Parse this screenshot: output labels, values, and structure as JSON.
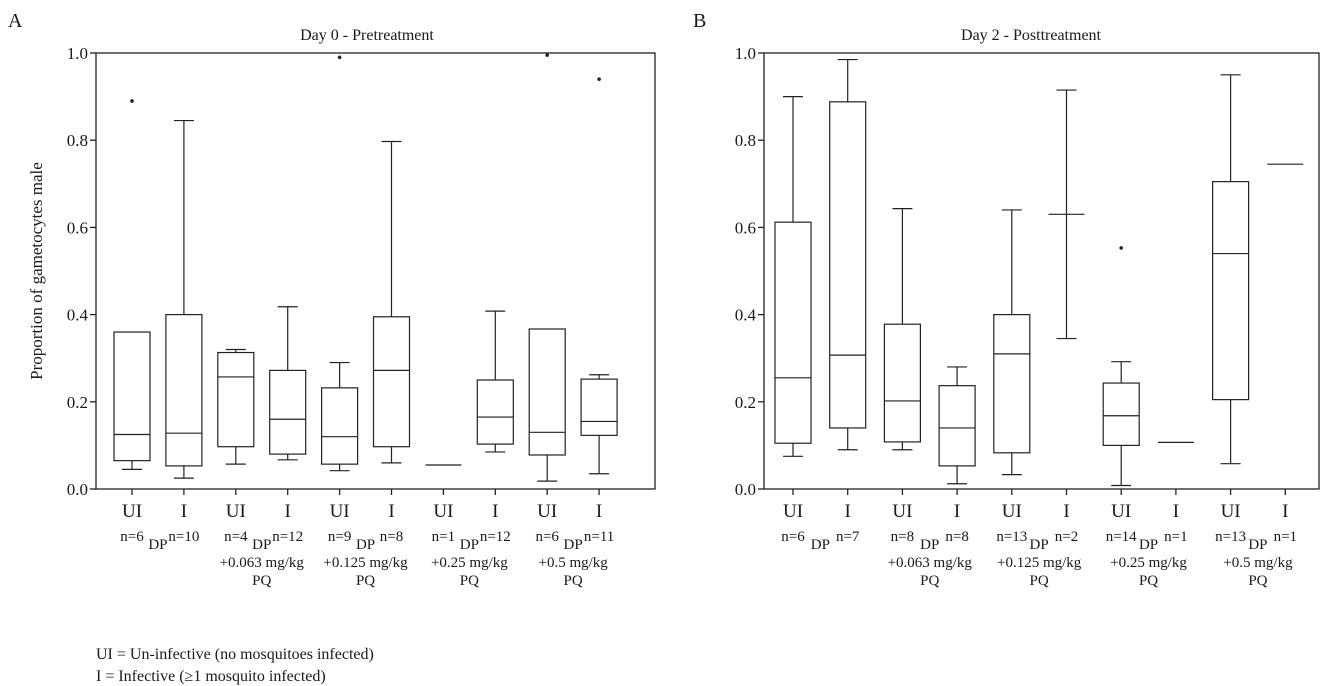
{
  "chart_data": [
    {
      "type": "box",
      "panel_label": "A",
      "title": "Day 0 - Pretreatment",
      "ylabel": "Proportion of gametocytes male",
      "ylim": [
        0,
        1.0
      ],
      "yticks": [
        "0.0",
        "0.2",
        "0.4",
        "0.6",
        "0.8",
        "1.0"
      ],
      "boxes": [
        {
          "category": "UI",
          "n": "n=6",
          "group": "DP",
          "min": 0.045,
          "q1": 0.065,
          "median": 0.125,
          "q3": 0.36,
          "max": 0.36,
          "outliers": [
            0.89
          ]
        },
        {
          "category": "I",
          "n": "n=10",
          "group": "DP",
          "min": 0.025,
          "q1": 0.053,
          "median": 0.128,
          "q3": 0.4,
          "max": 0.845,
          "outliers": []
        },
        {
          "category": "UI",
          "n": "n=4",
          "group": "DP +0.063 mg/kg PQ",
          "min": 0.057,
          "q1": 0.097,
          "median": 0.257,
          "q3": 0.313,
          "max": 0.32,
          "outliers": []
        },
        {
          "category": "I",
          "n": "n=12",
          "group": "DP +0.063 mg/kg PQ",
          "min": 0.067,
          "q1": 0.08,
          "median": 0.16,
          "q3": 0.272,
          "max": 0.418,
          "outliers": []
        },
        {
          "category": "UI",
          "n": "n=9",
          "group": "DP +0.125 mg/kg PQ",
          "min": 0.042,
          "q1": 0.057,
          "median": 0.12,
          "q3": 0.232,
          "max": 0.29,
          "outliers": [
            0.99
          ]
        },
        {
          "category": "I",
          "n": "n=8",
          "group": "DP +0.125 mg/kg PQ",
          "min": 0.06,
          "q1": 0.097,
          "median": 0.272,
          "q3": 0.395,
          "max": 0.797,
          "outliers": []
        },
        {
          "category": "UI",
          "n": "n=1",
          "group": "DP +0.25 mg/kg PQ",
          "min": 0.055,
          "q1": 0.055,
          "median": 0.055,
          "q3": 0.055,
          "max": 0.055,
          "outliers": []
        },
        {
          "category": "I",
          "n": "n=12",
          "group": "DP +0.25 mg/kg PQ",
          "min": 0.085,
          "q1": 0.103,
          "median": 0.165,
          "q3": 0.25,
          "max": 0.408,
          "outliers": []
        },
        {
          "category": "UI",
          "n": "n=6",
          "group": "DP +0.5 mg/kg PQ",
          "min": 0.018,
          "q1": 0.078,
          "median": 0.13,
          "q3": 0.367,
          "max": 0.367,
          "outliers": [
            0.995
          ]
        },
        {
          "category": "I",
          "n": "n=11",
          "group": "DP +0.5 mg/kg PQ",
          "min": 0.035,
          "q1": 0.123,
          "median": 0.155,
          "q3": 0.252,
          "max": 0.262,
          "outliers": [
            0.94
          ]
        }
      ]
    },
    {
      "type": "box",
      "panel_label": "B",
      "title": "Day 2 - Posttreatment",
      "ylabel": "",
      "ylim": [
        0,
        1.0
      ],
      "yticks": [
        "0.0",
        "0.2",
        "0.4",
        "0.6",
        "0.8",
        "1.0"
      ],
      "boxes": [
        {
          "category": "UI",
          "n": "n=6",
          "group": "DP",
          "min": 0.075,
          "q1": 0.105,
          "median": 0.255,
          "q3": 0.612,
          "max": 0.9,
          "outliers": []
        },
        {
          "category": "I",
          "n": "n=7",
          "group": "DP",
          "min": 0.09,
          "q1": 0.14,
          "median": 0.307,
          "q3": 0.888,
          "max": 0.985,
          "outliers": []
        },
        {
          "category": "UI",
          "n": "n=8",
          "group": "DP +0.063 mg/kg PQ",
          "min": 0.09,
          "q1": 0.108,
          "median": 0.202,
          "q3": 0.378,
          "max": 0.643,
          "outliers": []
        },
        {
          "category": "I",
          "n": "n=8",
          "group": "DP +0.063 mg/kg PQ",
          "min": 0.012,
          "q1": 0.053,
          "median": 0.14,
          "q3": 0.237,
          "max": 0.28,
          "outliers": []
        },
        {
          "category": "UI",
          "n": "n=13",
          "group": "DP +0.125 mg/kg PQ",
          "min": 0.033,
          "q1": 0.083,
          "median": 0.31,
          "q3": 0.4,
          "max": 0.64,
          "outliers": []
        },
        {
          "category": "I",
          "n": "n=2",
          "group": "DP +0.125 mg/kg PQ",
          "min": 0.345,
          "q1": 0.63,
          "median": 0.63,
          "q3": 0.63,
          "max": 0.915,
          "outliers": []
        },
        {
          "category": "UI",
          "n": "n=14",
          "group": "DP +0.25 mg/kg PQ",
          "min": 0.008,
          "q1": 0.1,
          "median": 0.168,
          "q3": 0.243,
          "max": 0.292,
          "outliers": [
            0.553
          ]
        },
        {
          "category": "I",
          "n": "n=1",
          "group": "DP +0.25 mg/kg PQ",
          "min": 0.107,
          "q1": 0.107,
          "median": 0.107,
          "q3": 0.107,
          "max": 0.107,
          "outliers": []
        },
        {
          "category": "UI",
          "n": "n=13",
          "group": "DP +0.5 mg/kg PQ",
          "min": 0.058,
          "q1": 0.205,
          "median": 0.54,
          "q3": 0.705,
          "max": 0.95,
          "outliers": []
        },
        {
          "category": "I",
          "n": "n=1",
          "group": "DP +0.5 mg/kg PQ",
          "min": 0.745,
          "q1": 0.745,
          "median": 0.745,
          "q3": 0.745,
          "max": 0.745,
          "outliers": []
        }
      ]
    }
  ],
  "group_labels": [
    [
      "DP"
    ],
    [
      "DP",
      "+0.063 mg/kg",
      "PQ"
    ],
    [
      "DP",
      "+0.125 mg/kg",
      "PQ"
    ],
    [
      "DP",
      "+0.25 mg/kg",
      "PQ"
    ],
    [
      "DP",
      "+0.5 mg/kg",
      "PQ"
    ]
  ],
  "legend": {
    "line1": "UI = Un-infective (no mosquitoes infected)",
    "line2": "I = Infective (≥1 mosquito infected)"
  }
}
